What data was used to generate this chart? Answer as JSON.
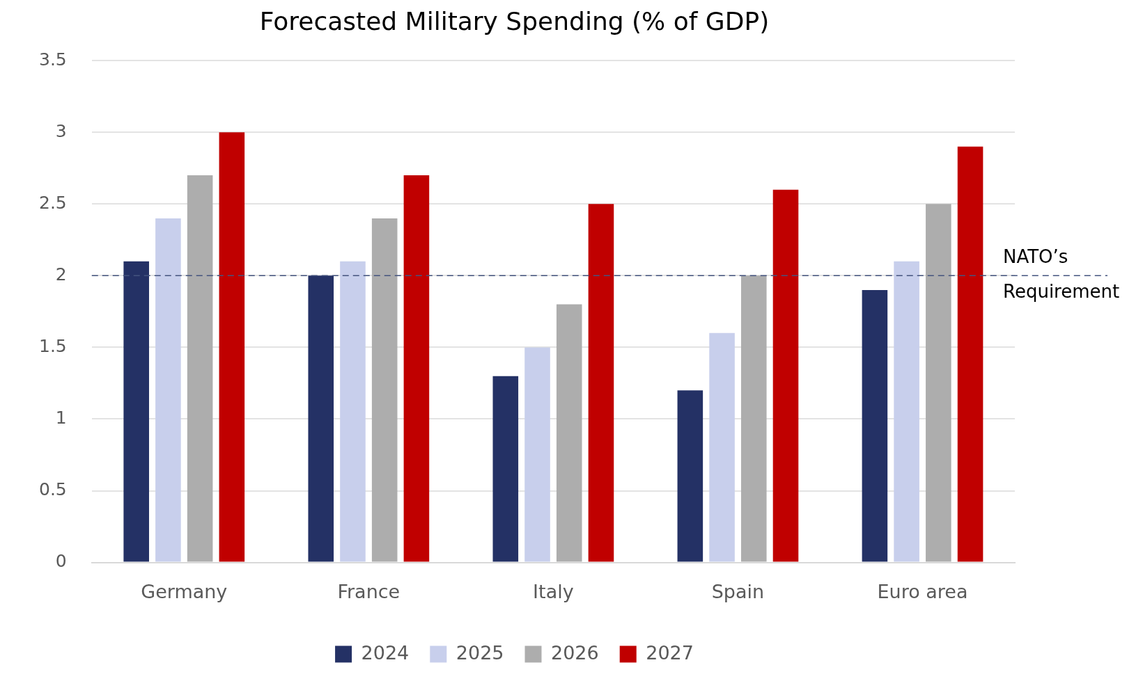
{
  "chart_data": {
    "type": "bar",
    "title": "Forecasted Military Spending (% of GDP)",
    "categories": [
      "Germany",
      "France",
      "Italy",
      "Spain",
      "Euro area"
    ],
    "series": [
      {
        "name": "2024",
        "color": "#243165",
        "values": [
          2.1,
          2.0,
          1.3,
          1.2,
          1.9
        ]
      },
      {
        "name": "2025",
        "color": "#c8cfec",
        "values": [
          2.4,
          2.1,
          1.5,
          1.6,
          2.1
        ]
      },
      {
        "name": "2026",
        "color": "#adadad",
        "values": [
          2.7,
          2.4,
          1.8,
          2.0,
          2.5
        ]
      },
      {
        "name": "2027",
        "color": "#c00000",
        "values": [
          3.0,
          2.7,
          2.5,
          2.6,
          2.9
        ]
      }
    ],
    "ylim": [
      0,
      3.5
    ],
    "yticks": [
      0,
      0.5,
      1,
      1.5,
      2,
      2.5,
      3,
      3.5
    ],
    "ref_lines": [
      {
        "axis": "y",
        "value": 2,
        "label": "NATO’s Requirement",
        "color": "#44547f",
        "line_style": "dashed"
      }
    ],
    "grid": "y",
    "legend": "bottom"
  }
}
